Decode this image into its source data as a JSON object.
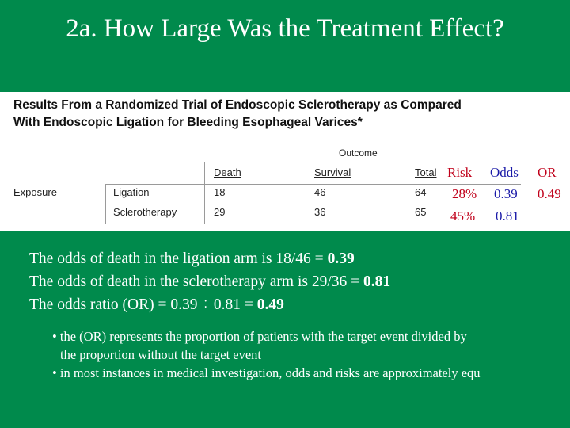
{
  "slide": {
    "title": "2a.  How Large Was the Treatment Effect?"
  },
  "table": {
    "caption_line1": "Results From a Randomized Trial of Endoscopic Sclerotherapy as Compared",
    "caption_line2": "With Endoscopic Ligation for Bleeding Esophageal Varices*",
    "outcome_label": "Outcome",
    "headers": {
      "death": "Death",
      "survival": "Survival",
      "total": "Total"
    },
    "exposure_label": "Exposure",
    "rows": [
      {
        "label": "Ligation",
        "death": "18",
        "survival": "46",
        "total": "64"
      },
      {
        "label": "Sclerotherapy",
        "death": "29",
        "survival": "36",
        "total": "65"
      }
    ]
  },
  "overlay": {
    "risk_header": "Risk",
    "odds_header": "Odds",
    "or_header": "OR",
    "risk_values": [
      "28%",
      "45%"
    ],
    "odds_values": [
      "0.39",
      "0.81"
    ],
    "or_value": "0.49"
  },
  "explanation": {
    "line1_text": "The odds of death in the ligation arm is 18/46 = ",
    "line1_value": "0.39",
    "line2_text": "The odds of death in the sclerotherapy arm is 29/36 = ",
    "line2_value": "0.81",
    "line3_text": "The odds ratio (OR) = 0.39 ÷ 0.81 = ",
    "line3_value": "0.49"
  },
  "bullets": {
    "b1_line1": "• the (OR) represents the proportion of patients with the target event divided by",
    "b1_line2": "the proportion without the target event",
    "b2": "• in most instances in medical investigation, odds and risks are approximately equ"
  }
}
